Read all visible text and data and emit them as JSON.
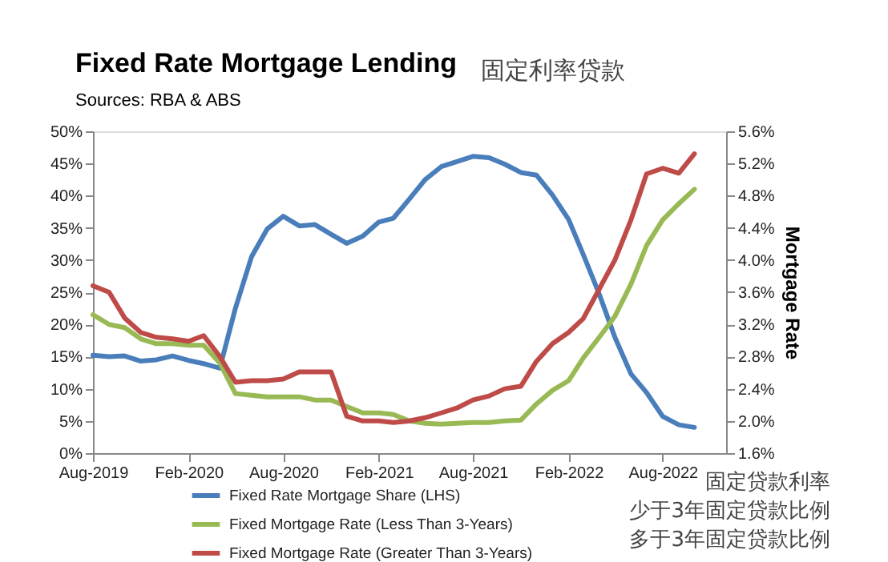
{
  "chart_data": {
    "type": "line",
    "title": "Fixed Rate Mortgage Lending",
    "subtitle": "Sources: RBA & ABS",
    "y2label": "Mortgage Rate",
    "annotations": [
      "固定利率贷款",
      "固定贷款利率",
      "少于3年固定贷款比例",
      "多于3年固定贷款比例"
    ],
    "x": [
      "2019-08",
      "2019-09",
      "2019-10",
      "2019-11",
      "2019-12",
      "2020-01",
      "2020-02",
      "2020-03",
      "2020-04",
      "2020-05",
      "2020-06",
      "2020-07",
      "2020-08",
      "2020-09",
      "2020-10",
      "2020-11",
      "2020-12",
      "2021-01",
      "2021-02",
      "2021-03",
      "2021-04",
      "2021-05",
      "2021-06",
      "2021-07",
      "2021-08",
      "2021-09",
      "2021-10",
      "2021-11",
      "2021-12",
      "2022-01",
      "2022-02",
      "2022-03",
      "2022-04",
      "2022-05",
      "2022-06",
      "2022-07",
      "2022-08",
      "2022-09",
      "2022-10"
    ],
    "series": [
      {
        "name": "Fixed Rate Mortgage Share (LHS)",
        "color": "#4a7ebb",
        "axis": "y",
        "values": [
          15.2,
          15.0,
          15.1,
          14.3,
          14.5,
          15.1,
          14.4,
          13.9,
          13.2,
          22.5,
          30.5,
          34.8,
          36.8,
          35.3,
          35.5,
          34.0,
          32.6,
          33.7,
          35.9,
          36.5,
          39.5,
          42.5,
          44.5,
          45.3,
          46.1,
          45.9,
          44.9,
          43.6,
          43.2,
          40.1,
          36.3,
          30.9,
          24.7,
          18.0,
          12.3,
          9.4,
          5.7,
          4.4,
          4.0
        ]
      },
      {
        "name": "Fixed Mortgage Rate (Less Than 3-Years)",
        "color": "#98b954",
        "axis": "y2",
        "values": [
          3.32,
          3.2,
          3.16,
          3.02,
          2.96,
          2.96,
          2.94,
          2.94,
          2.72,
          2.34,
          2.32,
          2.3,
          2.3,
          2.3,
          2.26,
          2.26,
          2.18,
          2.1,
          2.1,
          2.08,
          2.0,
          1.97,
          1.96,
          1.97,
          1.98,
          1.98,
          2.0,
          2.01,
          2.21,
          2.38,
          2.5,
          2.78,
          3.04,
          3.3,
          3.7,
          4.18,
          4.5,
          4.7,
          4.88
        ]
      },
      {
        "name": "Fixed Mortgage Rate (Greater Than 3-Years)",
        "color": "#be4b48",
        "axis": "y2",
        "values": [
          3.68,
          3.6,
          3.28,
          3.1,
          3.04,
          3.02,
          2.99,
          3.06,
          2.8,
          2.48,
          2.5,
          2.5,
          2.52,
          2.61,
          2.61,
          2.61,
          2.06,
          2.0,
          2.0,
          1.98,
          2.0,
          2.04,
          2.1,
          2.16,
          2.26,
          2.31,
          2.4,
          2.43,
          2.74,
          2.96,
          3.1,
          3.27,
          3.64,
          4.0,
          4.5,
          5.07,
          5.14,
          5.08,
          5.32
        ]
      }
    ],
    "xlim": [
      "2019-08",
      "2022-12"
    ],
    "xticks": [
      {
        "value": "2019-08",
        "label": "Aug-2019"
      },
      {
        "value": "2020-02",
        "label": "Feb-2020"
      },
      {
        "value": "2020-08",
        "label": "Aug-2020"
      },
      {
        "value": "2021-02",
        "label": "Feb-2021"
      },
      {
        "value": "2021-08",
        "label": "Aug-2021"
      },
      {
        "value": "2022-02",
        "label": "Feb-2022"
      },
      {
        "value": "2022-08",
        "label": "Aug-2022"
      }
    ],
    "ylim": [
      0,
      50
    ],
    "yticks": [
      {
        "value": 0,
        "label": "0%"
      },
      {
        "value": 5,
        "label": "5%"
      },
      {
        "value": 10,
        "label": "10%"
      },
      {
        "value": 15,
        "label": "15%"
      },
      {
        "value": 20,
        "label": "20%"
      },
      {
        "value": 25,
        "label": "25%"
      },
      {
        "value": 30,
        "label": "30%"
      },
      {
        "value": 35,
        "label": "35%"
      },
      {
        "value": 40,
        "label": "40%"
      },
      {
        "value": 45,
        "label": "45%"
      },
      {
        "value": 50,
        "label": "50%"
      }
    ],
    "y2lim": [
      1.6,
      5.6
    ],
    "y2ticks": [
      {
        "value": 1.6,
        "label": "1.6%"
      },
      {
        "value": 2.0,
        "label": "2.0%"
      },
      {
        "value": 2.4,
        "label": "2.4%"
      },
      {
        "value": 2.8,
        "label": "2.8%"
      },
      {
        "value": 3.2,
        "label": "3.2%"
      },
      {
        "value": 3.6,
        "label": "3.6%"
      },
      {
        "value": 4.0,
        "label": "4.0%"
      },
      {
        "value": 4.4,
        "label": "4.4%"
      },
      {
        "value": 4.8,
        "label": "4.8%"
      },
      {
        "value": 5.2,
        "label": "5.2%"
      },
      {
        "value": 5.6,
        "label": "5.6%"
      }
    ],
    "grid": false,
    "legend": "bottom"
  }
}
